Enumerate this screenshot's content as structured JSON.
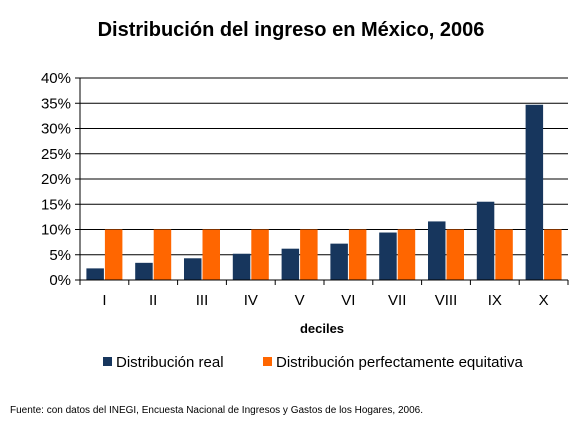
{
  "chart_data": {
    "type": "bar",
    "title": "Distribución del ingreso en México, 2006",
    "xlabel": "deciles",
    "ylabel": "",
    "ylim": [
      0,
      40
    ],
    "y_ticks": [
      "0%",
      "5%",
      "10%",
      "15%",
      "20%",
      "25%",
      "30%",
      "35%",
      "40%"
    ],
    "y_tick_values": [
      0,
      5,
      10,
      15,
      20,
      25,
      30,
      35,
      40
    ],
    "grid": true,
    "legend_position": "bottom",
    "categories": [
      "I",
      "II",
      "III",
      "IV",
      "V",
      "VI",
      "VII",
      "VIII",
      "IX",
      "X"
    ],
    "series": [
      {
        "name": "Distribución real",
        "color": "#17365d",
        "values": [
          2.3,
          3.4,
          4.3,
          5.2,
          6.2,
          7.2,
          9.4,
          11.6,
          15.5,
          34.7
        ]
      },
      {
        "name": "Distribución perfectamente equitativa",
        "color": "#ff6600",
        "values": [
          10,
          10,
          10,
          10,
          10,
          10,
          10,
          10,
          10,
          10
        ]
      }
    ],
    "footnote": "Fuente: con datos del INEGI, Encuesta Nacional de Ingresos y Gastos de los Hogares, 2006."
  }
}
